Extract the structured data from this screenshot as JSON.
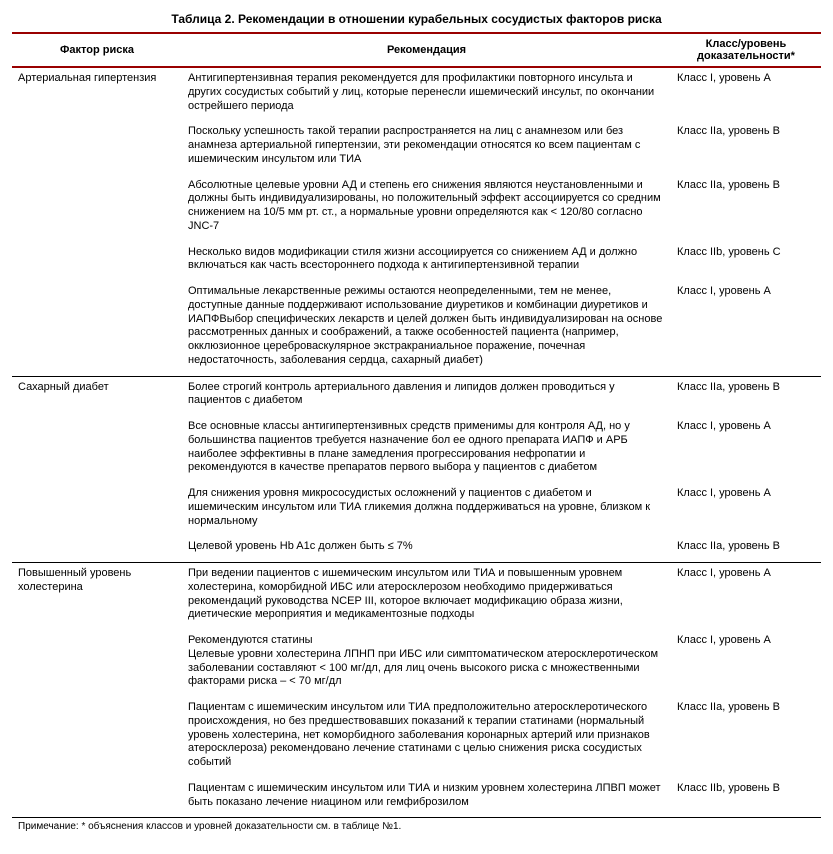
{
  "title": "Таблица 2. Рекомендации в отношении курабельных сосудистых факторов риска",
  "headers": {
    "factor": "Фактор риска",
    "recommendation": "Рекомендация",
    "evidence": "Класс/уровень доказательности*"
  },
  "groups": [
    {
      "factor": "Артериальная гипертензия",
      "rows": [
        {
          "rec": "Антигипертензивная терапия рекомендуется для профилактики повторного инсульта и других сосудистых событий у лиц, которые перенесли ишемический инсульт, по окончании острейшего периода",
          "cls": "Класс I, уровень А"
        },
        {
          "rec": "Поскольку успешность такой терапии распространяется на лиц с анамнезом или без анамнеза артериальной гипертензии, эти рекомендации относятся ко всем пациентам с ишемическим инсультом или ТИА",
          "cls": "Класс IIa, уровень В"
        },
        {
          "rec": "Абсолютные целевые уровни АД и степень его снижения являются неустановленными и должны быть индивидуализированы, но положительный эффект ассоциируется со средним снижением на 10/5 мм рт. ст., а нормальные уровни определяются как < 120/80 согласно JNC-7",
          "cls": "Класс IIa, уровень В"
        },
        {
          "rec": "Несколько видов модификации стиля жизни ассоциируется со снижением АД и должно включаться как часть всестороннего подхода к антигипертензивной терапии",
          "cls": "Класс IIb, уровень С"
        },
        {
          "rec": "Оптимальные лекарственные режимы остаются неопределенными, тем не менее, доступные данные поддерживают использование диуретиков и комбинации диуретиков и ИАПФВыбор специфических лекарств и целей должен быть индивидуализирован на основе рассмотренных данных и соображений, а также особенностей пациента (например, окклюзионное цереброваскулярное экстракраниальное поражение, почечная недостаточность, заболевания сердца, сахарный диабет)",
          "cls": "Класс I, уровень А"
        }
      ]
    },
    {
      "factor": "Сахарный диабет",
      "rows": [
        {
          "rec": "Более строгий контроль артериального давления и липидов должен проводиться у пациентов с диабетом",
          "cls": "Класс IIa, уровень В"
        },
        {
          "rec": "Все основные классы антигипертензивных средств применимы для контроля АД, но у большинства пациентов требуется назначение бол ее одного препарата ИАПФ и АРБ наиболее эффективны в плане замедления прогрессирования нефропатии и рекомендуются в качестве препаратов первого выбора у пациентов с диабетом",
          "cls": "Класс I, уровень А"
        },
        {
          "rec": "Для снижения уровня микрососудистых осложнений у пациентов с диабетом и ишемическим инсультом или ТИА гликемия должна поддерживаться на уровне, близком к нормальному",
          "cls": "Класс I, уровень А"
        },
        {
          "rec": "Целевой уровень Hb A1c должен быть ≤ 7%",
          "cls": "Класс IIa, уровень В"
        }
      ]
    },
    {
      "factor": "Повышенный уровень холестерина",
      "rows": [
        {
          "rec": "При ведении пациентов с ишемическим инсультом или ТИА и повышенным уровнем холестерина, коморбидной ИБС или атеросклерозом необходимо придерживаться рекомендаций руководства NCEP III, которое включает модификацию образа жизни, диетические мероприятия и медикаментозные подходы",
          "cls": "Класс I, уровень А"
        },
        {
          "rec": "Рекомендуются статины\nЦелевые уровни холестерина ЛПНП при ИБС или симптоматическом атеросклеротическом заболевании составляют < 100 мг/дл, для лиц очень высокого риска с множественными факторами риска – < 70 мг/дл",
          "cls": "Класс I, уровень А"
        },
        {
          "rec": "Пациентам с ишемическим инсультом или ТИА предположительно атеросклеротического происхождения, но без предшествовавших показаний к терапии статинами (нормальный уровень холестерина, нет коморбидного заболевания коронарных артерий или признаков атеросклероза) рекомендовано лечение статинами с целью снижения риска сосудистых событий",
          "cls": "Класс IIa, уровень В"
        },
        {
          "rec": "Пациентам с ишемическим инсультом или ТИА и низким уровнем холестерина ЛПВП может быть показано лечение ниацином или гемфиброзилом",
          "cls": "Класс IIb, уровень В"
        }
      ]
    }
  ],
  "footnote": "Примечание: * объяснения классов и уровней доказательности см. в таблице №1."
}
